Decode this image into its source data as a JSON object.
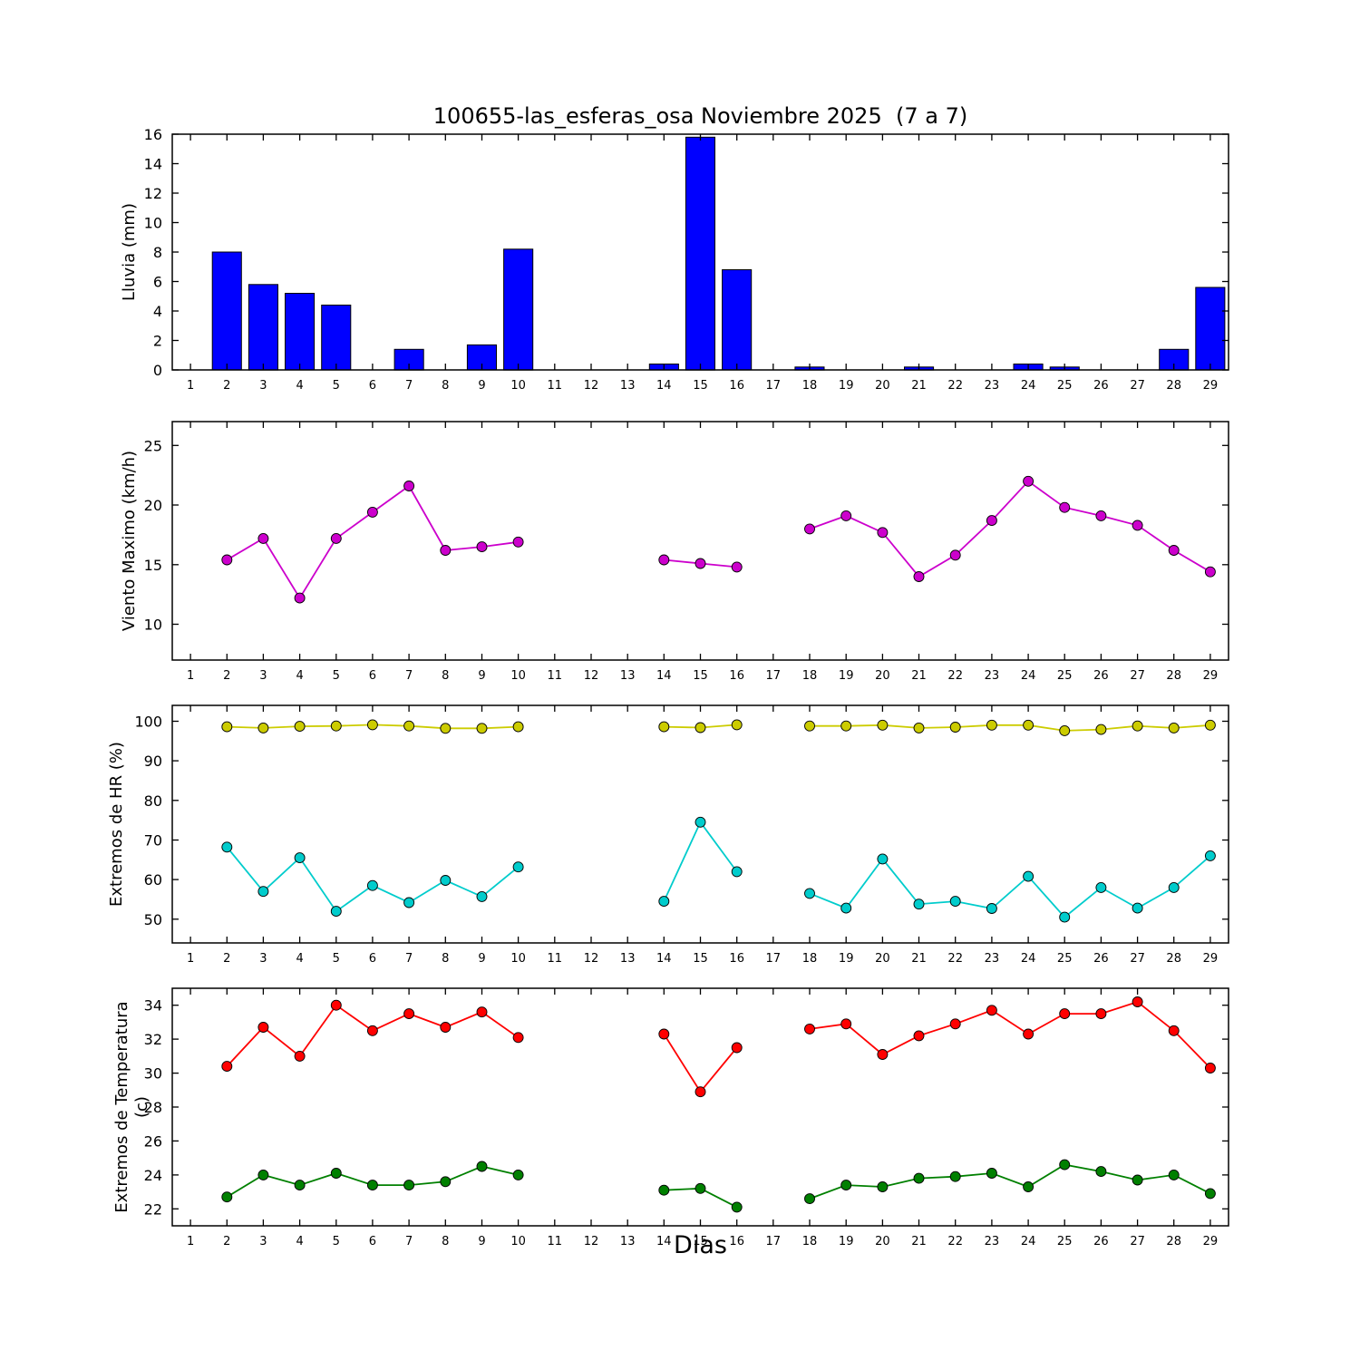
{
  "title": "100655-las_esferas_osa Noviembre 2025  (7 a 7)",
  "xlabel": "Dias",
  "chart_data": [
    {
      "type": "bar",
      "name": "lluvia",
      "ylabel": "Lluvia (mm)",
      "ylim": [
        0,
        16
      ],
      "yticks": [
        0,
        2,
        4,
        6,
        8,
        10,
        12,
        14,
        16
      ],
      "xlim": [
        0.5,
        29.5
      ],
      "xticks": [
        1,
        2,
        3,
        4,
        5,
        6,
        7,
        8,
        9,
        10,
        11,
        12,
        13,
        14,
        15,
        16,
        17,
        18,
        19,
        20,
        21,
        22,
        23,
        24,
        25,
        26,
        27,
        28,
        29
      ],
      "grid": false,
      "series": [
        {
          "name": "lluvia",
          "type": "bar",
          "color": "#0000ff",
          "values": [
            0,
            8.0,
            5.8,
            5.2,
            4.4,
            0,
            1.4,
            0,
            1.7,
            8.2,
            0,
            0,
            0,
            0.4,
            15.8,
            6.8,
            0,
            0.2,
            0,
            0,
            0.2,
            0,
            0,
            0.4,
            0.2,
            0,
            0,
            1.4,
            5.6
          ]
        }
      ]
    },
    {
      "type": "line",
      "name": "viento",
      "ylabel": "Viento Maximo (km/h)",
      "ylim": [
        7,
        27
      ],
      "yticks": [
        10,
        15,
        20,
        25
      ],
      "xlim": [
        0.5,
        29.5
      ],
      "xticks": [
        1,
        2,
        3,
        4,
        5,
        6,
        7,
        8,
        9,
        10,
        11,
        12,
        13,
        14,
        15,
        16,
        17,
        18,
        19,
        20,
        21,
        22,
        23,
        24,
        25,
        26,
        27,
        28,
        29
      ],
      "grid": false,
      "series": [
        {
          "name": "viento-maximo",
          "type": "line",
          "color": "#cc00cc",
          "values": [
            null,
            15.4,
            17.2,
            12.2,
            17.2,
            19.4,
            21.6,
            16.2,
            16.5,
            16.9,
            null,
            null,
            null,
            15.4,
            15.1,
            14.8,
            null,
            18.0,
            19.1,
            17.7,
            14.0,
            15.8,
            18.7,
            22.0,
            19.8,
            19.1,
            18.3,
            16.2,
            14.4
          ]
        }
      ]
    },
    {
      "type": "line",
      "name": "hr",
      "ylabel": "Extremos de HR (%)",
      "ylim": [
        44,
        104
      ],
      "yticks": [
        50,
        60,
        70,
        80,
        90,
        100
      ],
      "xlim": [
        0.5,
        29.5
      ],
      "xticks": [
        1,
        2,
        3,
        4,
        5,
        6,
        7,
        8,
        9,
        10,
        11,
        12,
        13,
        14,
        15,
        16,
        17,
        18,
        19,
        20,
        21,
        22,
        23,
        24,
        25,
        26,
        27,
        28,
        29
      ],
      "grid": false,
      "series": [
        {
          "name": "hr-maxima",
          "type": "line",
          "color": "#cccc00",
          "values": [
            null,
            98.6,
            98.3,
            98.7,
            98.8,
            99.1,
            98.8,
            98.2,
            98.2,
            98.6,
            null,
            null,
            null,
            98.6,
            98.4,
            99.1,
            null,
            98.8,
            98.8,
            99.0,
            98.3,
            98.5,
            99.0,
            99.0,
            97.6,
            97.9,
            98.8,
            98.3,
            99.0
          ]
        },
        {
          "name": "hr-minima",
          "type": "line",
          "color": "#00cccc",
          "values": [
            null,
            68.2,
            57.0,
            65.5,
            52.0,
            58.5,
            54.2,
            59.8,
            55.7,
            63.2,
            null,
            null,
            null,
            54.5,
            74.5,
            62.0,
            null,
            56.5,
            52.8,
            65.2,
            53.8,
            54.5,
            52.7,
            60.8,
            50.5,
            58.0,
            52.8,
            58.0,
            66.0
          ]
        }
      ]
    },
    {
      "type": "line",
      "name": "temperatura",
      "ylabel": "Extremos de Temperatura (c)",
      "ylim": [
        21,
        35
      ],
      "yticks": [
        22,
        24,
        26,
        28,
        30,
        32,
        34
      ],
      "xlim": [
        0.5,
        29.5
      ],
      "xticks": [
        1,
        2,
        3,
        4,
        5,
        6,
        7,
        8,
        9,
        10,
        11,
        12,
        13,
        14,
        15,
        16,
        17,
        18,
        19,
        20,
        21,
        22,
        23,
        24,
        25,
        26,
        27,
        28,
        29
      ],
      "grid": false,
      "series": [
        {
          "name": "temperatura-maxima",
          "type": "line",
          "color": "#ff0000",
          "values": [
            null,
            30.4,
            32.7,
            31.0,
            34.0,
            32.5,
            33.5,
            32.7,
            33.6,
            32.1,
            null,
            null,
            null,
            32.3,
            28.9,
            31.5,
            null,
            32.6,
            32.9,
            31.1,
            32.2,
            32.9,
            33.7,
            32.3,
            33.5,
            33.5,
            34.2,
            32.5,
            30.3
          ]
        },
        {
          "name": "temperatura-minima",
          "type": "line",
          "color": "#008000",
          "values": [
            null,
            22.7,
            24.0,
            23.4,
            24.1,
            23.4,
            23.4,
            23.6,
            24.5,
            24.0,
            null,
            null,
            null,
            23.1,
            23.2,
            22.1,
            null,
            22.6,
            23.4,
            23.3,
            23.8,
            23.9,
            24.1,
            23.3,
            24.6,
            24.2,
            23.7,
            24.0,
            22.9
          ]
        }
      ]
    }
  ]
}
